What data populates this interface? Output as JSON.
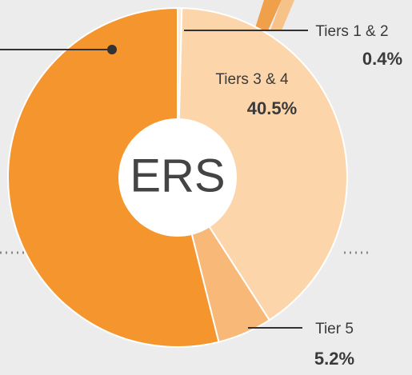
{
  "chart_data": {
    "type": "donut",
    "center_label": "ERS",
    "categories": [
      "Tiers 1 & 2",
      "Tiers 3 & 4",
      "Tier 5",
      null
    ],
    "values": [
      0.4,
      40.5,
      5.2,
      53.9
    ],
    "value_labels": [
      "0.4%",
      "40.5%",
      "5.2%",
      null
    ],
    "colors": [
      "#fdebd6",
      "#fcd6aa",
      "#f8b878",
      "#f5952d"
    ]
  }
}
